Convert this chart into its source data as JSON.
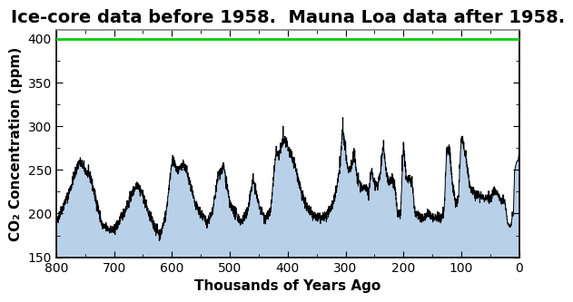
{
  "title": "Ice-core data before 1958.  Mauna Loa data after 1958.",
  "xlabel": "Thousands of Years Ago",
  "ylabel": "CO₂ Concentration (ppm)",
  "xlim": [
    800,
    0
  ],
  "ylim": [
    150,
    410
  ],
  "yticks": [
    150,
    200,
    250,
    300,
    350,
    400
  ],
  "xticks": [
    800,
    700,
    600,
    500,
    400,
    300,
    200,
    100,
    0
  ],
  "fill_color": "#b8d0e8",
  "fill_alpha": 1.0,
  "line_color": "#000000",
  "hline_value": 400,
  "hline_color": "#00cc00",
  "hline_lw": 2.0,
  "background_color": "#ffffff",
  "title_fontsize": 14,
  "label_fontsize": 11,
  "tick_fontsize": 10
}
